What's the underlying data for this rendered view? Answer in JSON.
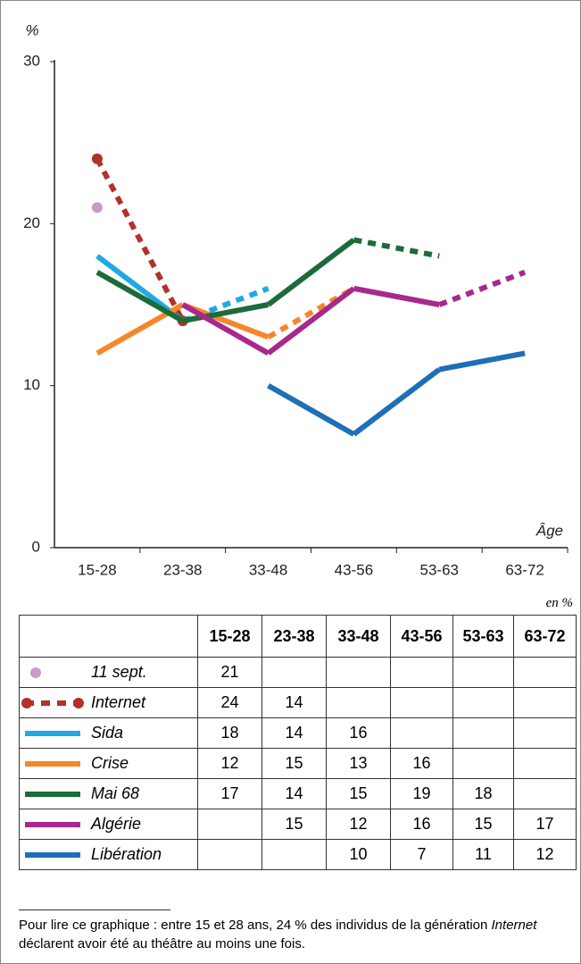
{
  "chart_data": {
    "type": "line",
    "y_label": "%",
    "x_label": "Âge",
    "categories": [
      "15-28",
      "23-38",
      "33-48",
      "43-56",
      "53-63",
      "63-72"
    ],
    "ylim": [
      0,
      30
    ],
    "yticks": [
      0,
      10,
      20,
      30
    ],
    "grid": false,
    "series": [
      {
        "name": "11 sept.",
        "color": "#c99ac9",
        "line_style": "none",
        "markers": true,
        "values": [
          21,
          null,
          null,
          null,
          null,
          null
        ]
      },
      {
        "name": "Internet",
        "color": "#b3302b",
        "line_style": "dashed",
        "markers": true,
        "values": [
          24,
          14,
          null,
          null,
          null,
          null
        ]
      },
      {
        "name": "Sida",
        "color": "#1faae2",
        "line_style": "dashed-last",
        "markers": false,
        "values": [
          18,
          14,
          16,
          null,
          null,
          null
        ]
      },
      {
        "name": "Crise",
        "color": "#f5872b",
        "line_style": "dashed-last",
        "markers": false,
        "values": [
          12,
          15,
          13,
          16,
          null,
          null
        ]
      },
      {
        "name": "Mai 68",
        "color": "#1c6b3a",
        "line_style": "dashed-last",
        "markers": false,
        "values": [
          17,
          14,
          15,
          19,
          18,
          null
        ]
      },
      {
        "name": "Algérie",
        "color": "#a8288d",
        "line_style": "dashed-last",
        "markers": false,
        "values": [
          null,
          15,
          12,
          16,
          15,
          17
        ]
      },
      {
        "name": "Libération",
        "color": "#1e6fb5",
        "line_style": "solid",
        "markers": false,
        "values": [
          null,
          null,
          10,
          7,
          11,
          12
        ]
      }
    ]
  },
  "table": {
    "unit": "en %"
  },
  "footnote": [
    "Pour lire ce graphique : entre 15 et 28 ans, 24 % des individus de la génération ",
    "Internet",
    " déclarent avoir été au théâtre au moins une fois."
  ]
}
